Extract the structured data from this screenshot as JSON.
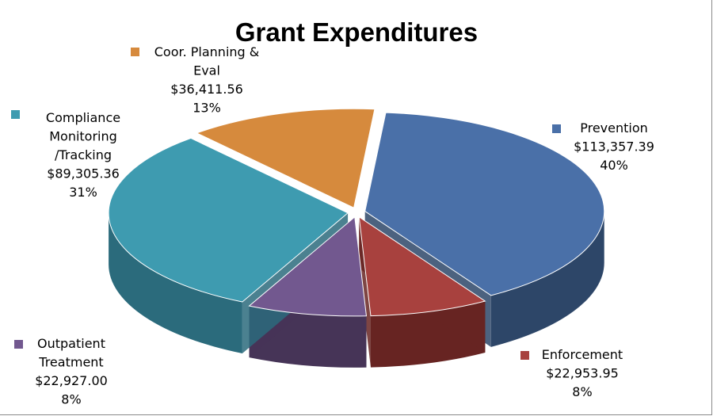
{
  "chart_data": {
    "type": "pie",
    "title": "Grant Expenditures",
    "slices": [
      {
        "label": "Prevention",
        "value": 113357.39,
        "value_label": "$113,357.39",
        "percent": 40,
        "percent_label": "40%",
        "color": "#4a70a8",
        "side": "#2d4668"
      },
      {
        "label": "Enforcement",
        "value": 22953.95,
        "value_label": "$22,953.95",
        "percent": 8,
        "percent_label": "8%",
        "color": "#a8413e",
        "side": "#672422"
      },
      {
        "label": "Outpatient Treatment",
        "value": 22927.0,
        "value_label": "$22,927.00",
        "percent": 8,
        "percent_label": "8%",
        "color": "#72588f",
        "side": "#463457"
      },
      {
        "label": "Compliance Monitoring /Tracking",
        "value": 89305.36,
        "value_label": "$89,305.36",
        "percent": 31,
        "percent_label": "31%",
        "color": "#3e9bb0",
        "side": "#2b6b7c"
      },
      {
        "label": "Coor. Planning & Eval",
        "value": 36411.56,
        "value_label": "$36,411.56",
        "percent": 13,
        "percent_label": "13%",
        "color": "#d68a3d",
        "side": "#8a5520"
      }
    ],
    "legend_lines": [
      [
        "Prevention"
      ],
      [
        "Enforcement"
      ],
      [
        "Outpatient",
        "Treatment"
      ],
      [
        "Compliance",
        "Monitoring",
        "/Tracking"
      ],
      [
        "Coor. Planning &",
        "Eval"
      ]
    ],
    "style": "3d-exploded",
    "legend": "data labels beside slices"
  }
}
